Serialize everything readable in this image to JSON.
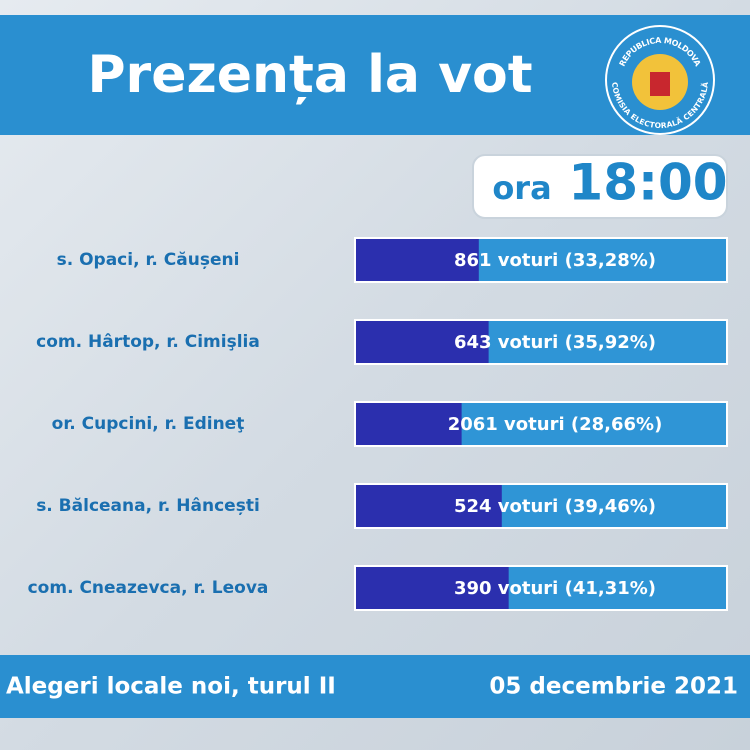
{
  "chart_data": {
    "type": "bar",
    "orientation": "horizontal",
    "title": "Prezența la vot",
    "time_prefix": "ora",
    "time": "18:00",
    "logo_top": "REPUBLICA MOLDOVA",
    "logo_bottom": "COMISIA ELECTORALĂ CENTRALĂ",
    "categories": [
      "s. Opaci, r. Căușeni",
      "com. Hârtop, r. Cimişlia",
      "or. Cupcini, r. Edineţ",
      "s. Bălceana, r. Hâncești",
      "com. Cneazevca, r. Leova"
    ],
    "values": [
      33.28,
      35.92,
      28.66,
      39.46,
      41.31
    ],
    "value_labels": [
      "861  voturi (33,28%)",
      "643 voturi (35,92%)",
      "2061 voturi (28,66%)",
      "524 voturi (39,46%)",
      "390 voturi (41,31%)"
    ],
    "xlim": [
      0,
      100
    ],
    "color": "#2b2fae",
    "track_color": "#2f95d6",
    "footer_left": "Alegeri locale noi, turul II",
    "footer_right": "05 decembrie 2021"
  }
}
